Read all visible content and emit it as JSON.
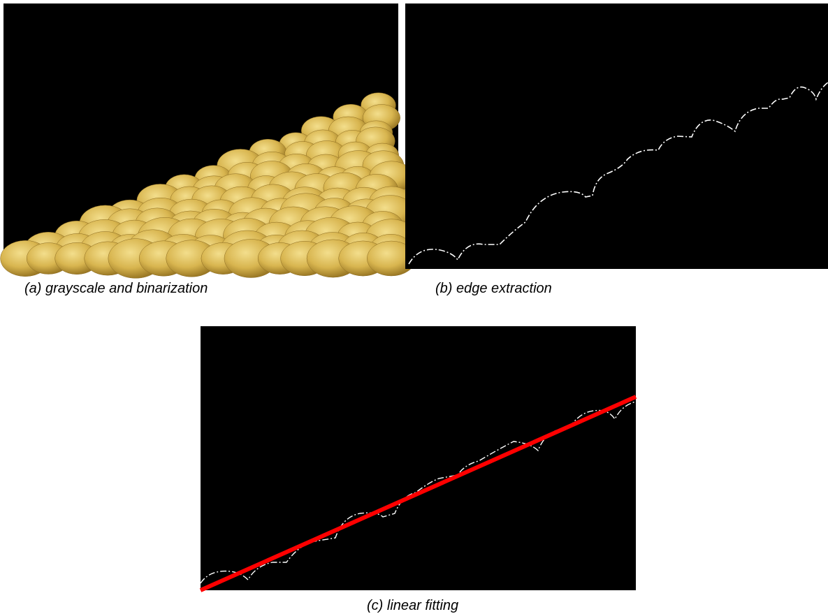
{
  "captions": {
    "a": "(a) grayscale and binarization",
    "b": "(b) edge extraction",
    "c": "(c) linear fitting"
  }
}
